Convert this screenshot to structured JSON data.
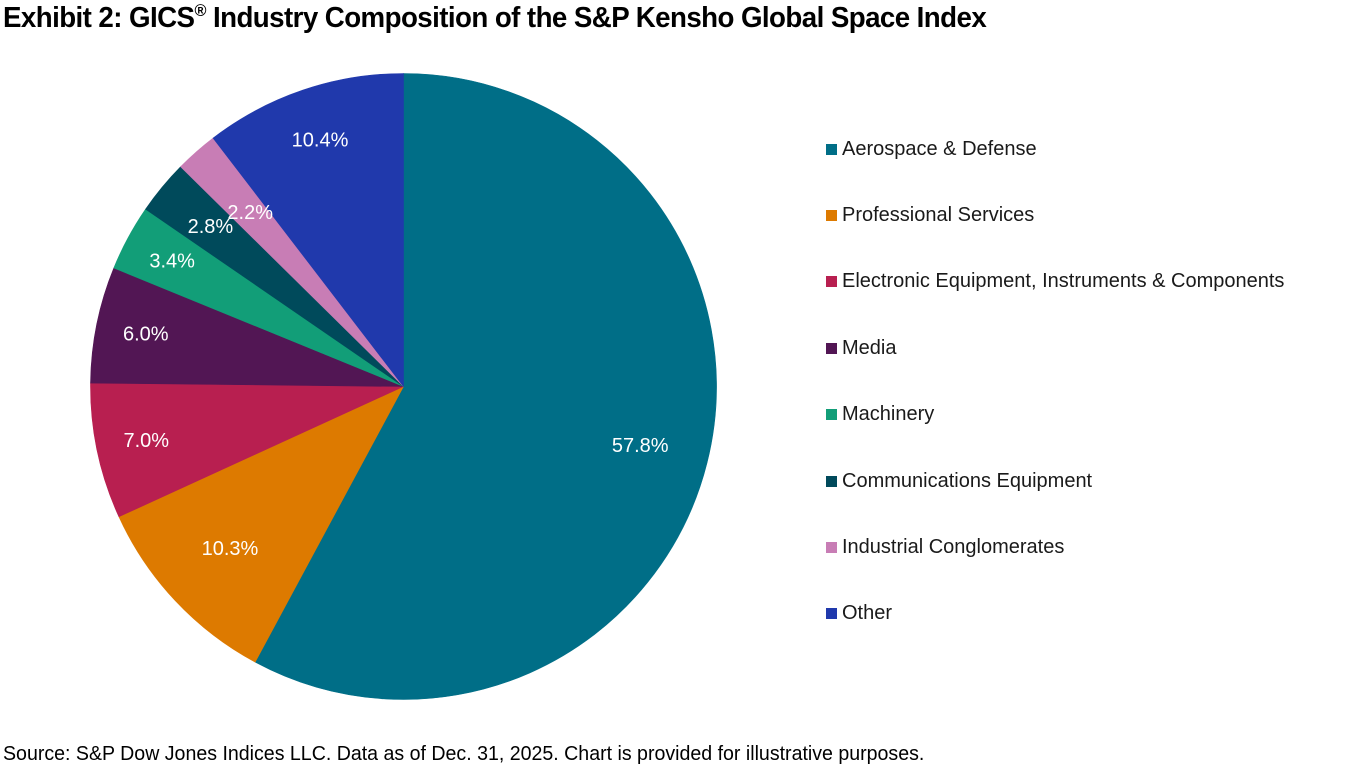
{
  "title": {
    "prefix": "Exhibit 2: GICS",
    "superscript": "®",
    "suffix": " Industry Composition of the S&P Kensho Global Space Index"
  },
  "source": "Source: S&P Dow Jones Indices LLC. Data as of Dec. 31, 2025. Chart is provided for illustrative purposes.",
  "chart_data": {
    "type": "pie",
    "title": "Exhibit 2: GICS® Industry Composition of the S&P Kensho Global Space Index",
    "start": "12 o'clock",
    "direction": "clockwise",
    "legend_position": "right",
    "value_format": "percent",
    "slices": [
      {
        "label": "Aerospace & Defense",
        "value": 57.8,
        "display": "57.8%",
        "color": "#006E87"
      },
      {
        "label": "Professional Services",
        "value": 10.3,
        "display": "10.3%",
        "color": "#DD7A00"
      },
      {
        "label": "Electronic Equipment, Instruments & Components",
        "value": 7.0,
        "display": "7.0%",
        "color": "#B81F50"
      },
      {
        "label": "Media",
        "value": 6.0,
        "display": "6.0%",
        "color": "#521654"
      },
      {
        "label": "Machinery",
        "value": 3.4,
        "display": "3.4%",
        "color": "#129E78"
      },
      {
        "label": "Communications Equipment",
        "value": 2.8,
        "display": "2.8%",
        "color": "#004A5B"
      },
      {
        "label": "Industrial Conglomerates",
        "value": 2.2,
        "display": "2.2%",
        "color": "#C87DB5"
      },
      {
        "label": "Other",
        "value": 10.4,
        "display": "10.4%",
        "color": "#2039AC"
      }
    ]
  }
}
